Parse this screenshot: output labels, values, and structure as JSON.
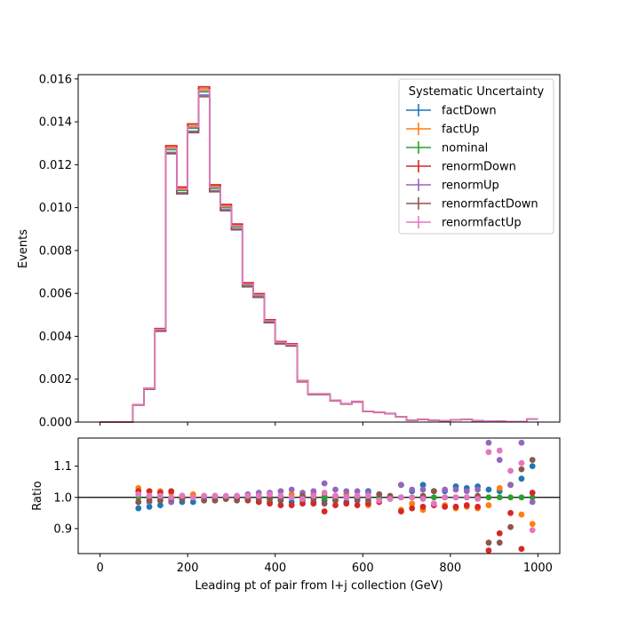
{
  "chart_data": [
    {
      "type": "line",
      "style": "step",
      "xlabel": "",
      "ylabel": "Events",
      "xlim": [
        -50,
        1050
      ],
      "ylim": [
        0,
        0.0162
      ],
      "xticks": [
        0,
        200,
        400,
        600,
        800,
        1000
      ],
      "yticks": [
        0.0,
        0.002,
        0.004,
        0.006,
        0.008,
        0.01,
        0.012,
        0.014,
        0.016
      ],
      "ytick_labels": [
        "0.000",
        "0.002",
        "0.004",
        "0.006",
        "0.008",
        "0.010",
        "0.012",
        "0.014",
        "0.016"
      ],
      "legend": {
        "title": "Systematic Uncertainty",
        "location": "upper right",
        "entries": [
          "factDown",
          "factUp",
          "nominal",
          "renormDown",
          "renormUp",
          "renormfactDown",
          "renormfactUp"
        ]
      },
      "bin_edges": [
        0,
        25,
        50,
        75,
        100,
        125,
        150,
        175,
        200,
        225,
        250,
        275,
        300,
        325,
        350,
        375,
        400,
        425,
        450,
        475,
        500,
        525,
        550,
        575,
        600,
        625,
        650,
        675,
        700,
        725,
        750,
        775,
        800,
        825,
        850,
        875,
        900,
        925,
        950,
        975,
        1000
      ],
      "nominal": [
        0,
        0,
        0,
        0.0008,
        0.00155,
        0.0043,
        0.0127,
        0.0108,
        0.0137,
        0.0154,
        0.0109,
        0.01,
        0.0091,
        0.0064,
        0.0059,
        0.0047,
        0.0037,
        0.0036,
        0.0019,
        0.0013,
        0.0013,
        0.001,
        0.00085,
        0.00095,
        0.0005,
        0.00045,
        0.0004,
        0.00025,
        8e-05,
        0.00012,
        8e-05,
        7e-05,
        0.0001,
        0.00012,
        6e-05,
        5e-05,
        4e-05,
        3e-05,
        3e-05,
        0.00015
      ],
      "series": [
        {
          "name": "factDown",
          "color": "#1f77b4",
          "scale": 0.99
        },
        {
          "name": "factUp",
          "color": "#ff7f0e",
          "scale": 1.01
        },
        {
          "name": "nominal",
          "color": "#2ca02c",
          "scale": 1.0
        },
        {
          "name": "renormDown",
          "color": "#d62728",
          "scale": 1.015
        },
        {
          "name": "renormUp",
          "color": "#9467bd",
          "scale": 0.99
        },
        {
          "name": "renormfactDown",
          "color": "#8c564b",
          "scale": 0.985
        },
        {
          "name": "renormfactUp",
          "color": "#e377c2",
          "scale": 1.005
        }
      ]
    },
    {
      "type": "scatter",
      "xlabel": "Leading pt of pair from l+j collection (GeV)",
      "ylabel": "Ratio",
      "xlim": [
        -50,
        1050
      ],
      "ylim": [
        0.82,
        1.19
      ],
      "xticks": [
        0,
        200,
        400,
        600,
        800,
        1000
      ],
      "yticks": [
        0.9,
        1.0,
        1.1
      ],
      "ytick_labels": [
        "0.9",
        "1.0",
        "1.1"
      ],
      "reference_line": 1.0,
      "x_centers": [
        87.5,
        112.5,
        137.5,
        162.5,
        187.5,
        212.5,
        237.5,
        262.5,
        287.5,
        312.5,
        337.5,
        362.5,
        387.5,
        412.5,
        437.5,
        462.5,
        487.5,
        512.5,
        537.5,
        562.5,
        587.5,
        612.5,
        637.5,
        662.5,
        687.5,
        712.5,
        737.5,
        762.5,
        787.5,
        812.5,
        837.5,
        862.5,
        887.5,
        912.5,
        937.5,
        962.5,
        987.5
      ],
      "series": [
        {
          "name": "factDown",
          "color": "#1f77b4",
          "values": [
            0.965,
            0.97,
            0.975,
            0.985,
            0.985,
            0.985,
            0.99,
            0.99,
            0.995,
            0.995,
            0.995,
            0.99,
            0.985,
            0.99,
            0.985,
            0.99,
            0.985,
            0.99,
            0.99,
            0.985,
            0.99,
            1.02,
            1.0,
            1.0,
            1.04,
            1.02,
            1.04,
            1.02,
            1.02,
            1.035,
            1.03,
            1.035,
            1.025,
            1.02,
            1.04,
            1.06,
            1.1
          ]
        },
        {
          "name": "factUp",
          "color": "#ff7f0e",
          "values": [
            1.03,
            1.02,
            1.02,
            1.015,
            1.005,
            1.01,
            1.005,
            1.005,
            1.0,
            1.0,
            1.0,
            1.005,
            1.01,
            1.005,
            1.01,
            1.005,
            1.01,
            1.005,
            1.005,
            1.01,
            1.005,
            0.975,
            0.995,
            0.995,
            0.96,
            0.98,
            0.96,
            0.98,
            0.975,
            0.965,
            0.97,
            0.965,
            0.975,
            1.03,
            1.04,
            0.945,
            0.915
          ]
        },
        {
          "name": "nominal",
          "color": "#2ca02c",
          "values": [
            1.0,
            1.0,
            1.0,
            1.0,
            1.0,
            1.0,
            1.0,
            1.0,
            1.0,
            1.0,
            1.0,
            1.0,
            1.0,
            1.0,
            1.0,
            1.0,
            1.0,
            1.0,
            1.0,
            1.0,
            1.0,
            1.0,
            1.0,
            1.0,
            1.0,
            1.0,
            1.0,
            1.0,
            1.0,
            1.0,
            1.0,
            1.0,
            1.0,
            1.0,
            1.0,
            1.0,
            1.0
          ]
        },
        {
          "name": "renormDown",
          "color": "#d62728",
          "values": [
            1.02,
            1.02,
            1.015,
            1.02,
            1.005,
            1.0,
            1.0,
            1.0,
            1.0,
            1.0,
            0.99,
            0.985,
            0.98,
            0.975,
            0.975,
            0.98,
            0.98,
            0.955,
            0.975,
            0.98,
            0.975,
            0.98,
            0.985,
            1.0,
            0.955,
            0.965,
            0.97,
            0.975,
            0.97,
            0.97,
            0.975,
            0.97,
            0.83,
            0.885,
            0.95,
            0.835,
            1.015
          ]
        },
        {
          "name": "renormUp",
          "color": "#9467bd",
          "values": [
            0.985,
            0.985,
            0.99,
            0.985,
            0.995,
            1.0,
            1.0,
            1.0,
            1.0,
            1.005,
            1.01,
            1.015,
            1.015,
            1.02,
            1.025,
            1.015,
            1.02,
            1.045,
            1.025,
            1.02,
            1.02,
            1.015,
            1.01,
            1.0,
            1.04,
            1.025,
            1.025,
            1.02,
            1.025,
            1.025,
            1.02,
            1.025,
            1.175,
            1.12,
            1.04,
            1.175,
            0.985
          ]
        },
        {
          "name": "renormfactDown",
          "color": "#8c564b",
          "values": [
            0.985,
            0.99,
            0.99,
            0.995,
            0.995,
            1.0,
            0.99,
            0.99,
            0.995,
            0.99,
            0.995,
            0.995,
            0.995,
            0.995,
            1.0,
            1.005,
            0.995,
            0.98,
            0.99,
            1.0,
            0.995,
            0.99,
            1.01,
            1.005,
            1.0,
            1.0,
            1.005,
            1.02,
            1.0,
            1.0,
            1.0,
            1.005,
            0.855,
            0.855,
            0.905,
            1.09,
            1.12
          ]
        },
        {
          "name": "renormfactUp",
          "color": "#e377c2",
          "values": [
            1.01,
            1.005,
            1.005,
            1.0,
            1.005,
            1.0,
            1.005,
            1.005,
            1.005,
            1.005,
            1.005,
            1.005,
            1.01,
            1.005,
            1.0,
            0.995,
            1.005,
            1.015,
            1.005,
            1.0,
            1.005,
            1.005,
            0.99,
            0.995,
            1.0,
            1.0,
            0.995,
            0.98,
            1.0,
            1.0,
            1.0,
            0.995,
            1.145,
            1.15,
            1.085,
            1.11,
            0.895
          ]
        }
      ]
    }
  ]
}
